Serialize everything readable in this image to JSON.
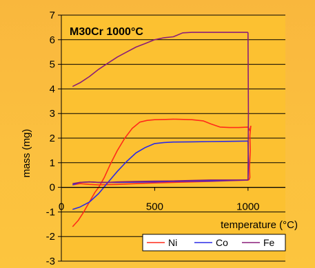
{
  "chart_data": {
    "type": "line",
    "title": "M30Cr 1000°C",
    "xlabel": "temperature (°C)",
    "ylabel": "mass (mg)",
    "xlim": [
      0,
      1200
    ],
    "ylim": [
      -3,
      7
    ],
    "x_ticks": [
      0,
      500,
      1000
    ],
    "y_ticks": [
      -3,
      -2,
      -1,
      0,
      1,
      2,
      3,
      4,
      5,
      6,
      7
    ],
    "grid": "horizontal",
    "legend_position": "bottom-right",
    "colors": {
      "background": "#fbbf3e",
      "plot_area": "#fcc131",
      "grid": "#000000",
      "Ni": "#ff2a1a",
      "Co": "#2a2ae6",
      "Fe": "#8a1d78"
    },
    "series": [
      {
        "name": "Ni",
        "segments": [
          {
            "x": [
              60,
              90,
              120,
              150,
              180,
              200,
              230,
              260,
              300,
              340,
              380,
              420,
              460,
              500,
              560,
              600,
              700,
              760,
              800,
              850,
              900,
              950,
              1000,
              1010,
              1015
            ],
            "y": [
              -1.6,
              -1.35,
              -1.0,
              -0.6,
              -0.2,
              0.0,
              0.4,
              0.9,
              1.5,
              2.0,
              2.4,
              2.65,
              2.72,
              2.75,
              2.76,
              2.77,
              2.75,
              2.7,
              2.58,
              2.45,
              2.43,
              2.43,
              2.45,
              2.3,
              2.5
            ]
          },
          {
            "x": [
              1015,
              1010,
              1012,
              1008,
              1010,
              1005
            ],
            "y": [
              2.5,
              2.1,
              1.5,
              0.8,
              0.4,
              0.3
            ]
          },
          {
            "x": [
              1005,
              950,
              900,
              800,
              700,
              600,
              500,
              400,
              300,
              200,
              150,
              100,
              60
            ],
            "y": [
              0.3,
              0.28,
              0.27,
              0.24,
              0.22,
              0.2,
              0.18,
              0.15,
              0.12,
              0.1,
              0.12,
              0.15,
              0.1
            ]
          }
        ]
      },
      {
        "name": "Co",
        "segments": [
          {
            "x": [
              60,
              100,
              150,
              200,
              250,
              300,
              350,
              400,
              450,
              500,
              550,
              600,
              700,
              800,
              900,
              1000
            ],
            "y": [
              -0.9,
              -0.8,
              -0.6,
              -0.25,
              0.2,
              0.65,
              1.05,
              1.4,
              1.62,
              1.78,
              1.82,
              1.84,
              1.85,
              1.86,
              1.87,
              1.88
            ]
          },
          {
            "x": [
              1000,
              1003,
              1000
            ],
            "y": [
              1.88,
              1.0,
              0.3
            ]
          },
          {
            "x": [
              1000,
              900,
              800,
              700,
              600,
              500,
              400,
              300,
              200,
              150,
              100,
              60
            ],
            "y": [
              0.3,
              0.28,
              0.26,
              0.25,
              0.24,
              0.22,
              0.21,
              0.2,
              0.2,
              0.22,
              0.2,
              0.1
            ]
          }
        ]
      },
      {
        "name": "Fe",
        "segments": [
          {
            "x": [
              60,
              100,
              150,
              200,
              250,
              300,
              350,
              400,
              450,
              500,
              550,
              600,
              650,
              700,
              750,
              800,
              850,
              900,
              950,
              1000
            ],
            "y": [
              4.1,
              4.25,
              4.5,
              4.8,
              5.05,
              5.3,
              5.5,
              5.7,
              5.85,
              6.0,
              6.08,
              6.12,
              6.28,
              6.3,
              6.3,
              6.3,
              6.3,
              6.3,
              6.3,
              6.3
            ]
          },
          {
            "x": [
              1000,
              1002,
              1000
            ],
            "y": [
              6.3,
              3.0,
              0.3
            ]
          },
          {
            "x": [
              1000,
              900,
              800,
              700,
              600,
              500,
              400,
              300,
              250,
              200,
              150,
              100,
              60
            ],
            "y": [
              0.3,
              0.3,
              0.3,
              0.28,
              0.26,
              0.25,
              0.24,
              0.22,
              0.2,
              0.2,
              0.22,
              0.2,
              0.15
            ]
          }
        ]
      }
    ]
  }
}
